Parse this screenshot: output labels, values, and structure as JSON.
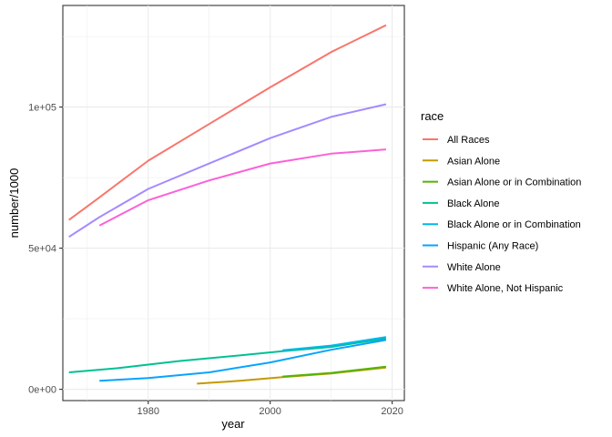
{
  "chart_data": {
    "type": "line",
    "title": "",
    "xlabel": "year",
    "ylabel": "number/1000",
    "xlim": [
      1966,
      2022
    ],
    "ylim": [
      -4000,
      136000
    ],
    "x_ticks": [
      1980,
      2000,
      2020
    ],
    "x_tick_labels": [
      "1980",
      "2000",
      "2020"
    ],
    "y_ticks": [
      0,
      50000,
      100000
    ],
    "y_tick_labels": [
      "0e+00",
      "5e+04",
      "1e+05"
    ],
    "grid": true,
    "legend": {
      "title": "race",
      "position": "right"
    },
    "series": [
      {
        "name": "All Races",
        "color": "#F8766D",
        "points": [
          [
            1967,
            60000
          ],
          [
            1972,
            68000
          ],
          [
            1980,
            81000
          ],
          [
            1990,
            94000
          ],
          [
            2000,
            107000
          ],
          [
            2010,
            119500
          ],
          [
            2019,
            129000
          ]
        ]
      },
      {
        "name": "Asian Alone",
        "color": "#C49A00",
        "points": [
          [
            1988,
            2000
          ],
          [
            1995,
            3000
          ],
          [
            2002,
            4300
          ],
          [
            2010,
            5600
          ],
          [
            2019,
            7700
          ]
        ]
      },
      {
        "name": "Asian Alone or in Combination",
        "color": "#53B400",
        "points": [
          [
            2002,
            4500
          ],
          [
            2010,
            5800
          ],
          [
            2019,
            8000
          ]
        ]
      },
      {
        "name": "Black Alone",
        "color": "#00C094",
        "points": [
          [
            1967,
            6000
          ],
          [
            1975,
            7500
          ],
          [
            1985,
            10000
          ],
          [
            1995,
            12000
          ],
          [
            2002,
            13500
          ],
          [
            2010,
            15000
          ],
          [
            2019,
            18000
          ]
        ]
      },
      {
        "name": "Black Alone or in Combination",
        "color": "#00B6EB",
        "points": [
          [
            2002,
            13800
          ],
          [
            2010,
            15500
          ],
          [
            2019,
            18500
          ]
        ]
      },
      {
        "name": "Hispanic (Any Race)",
        "color": "#06A4FF",
        "points": [
          [
            1972,
            3000
          ],
          [
            1980,
            4000
          ],
          [
            1990,
            6000
          ],
          [
            2000,
            9500
          ],
          [
            2010,
            14000
          ],
          [
            2019,
            17500
          ]
        ]
      },
      {
        "name": "White Alone",
        "color": "#A58AFF",
        "points": [
          [
            1967,
            54000
          ],
          [
            1972,
            61000
          ],
          [
            1980,
            71000
          ],
          [
            1990,
            80000
          ],
          [
            2000,
            89000
          ],
          [
            2010,
            96500
          ],
          [
            2019,
            101000
          ]
        ]
      },
      {
        "name": "White Alone, Not Hispanic",
        "color": "#FB61D7",
        "points": [
          [
            1972,
            58000
          ],
          [
            1980,
            67000
          ],
          [
            1990,
            74000
          ],
          [
            2000,
            80000
          ],
          [
            2010,
            83500
          ],
          [
            2019,
            85000
          ]
        ]
      }
    ]
  }
}
